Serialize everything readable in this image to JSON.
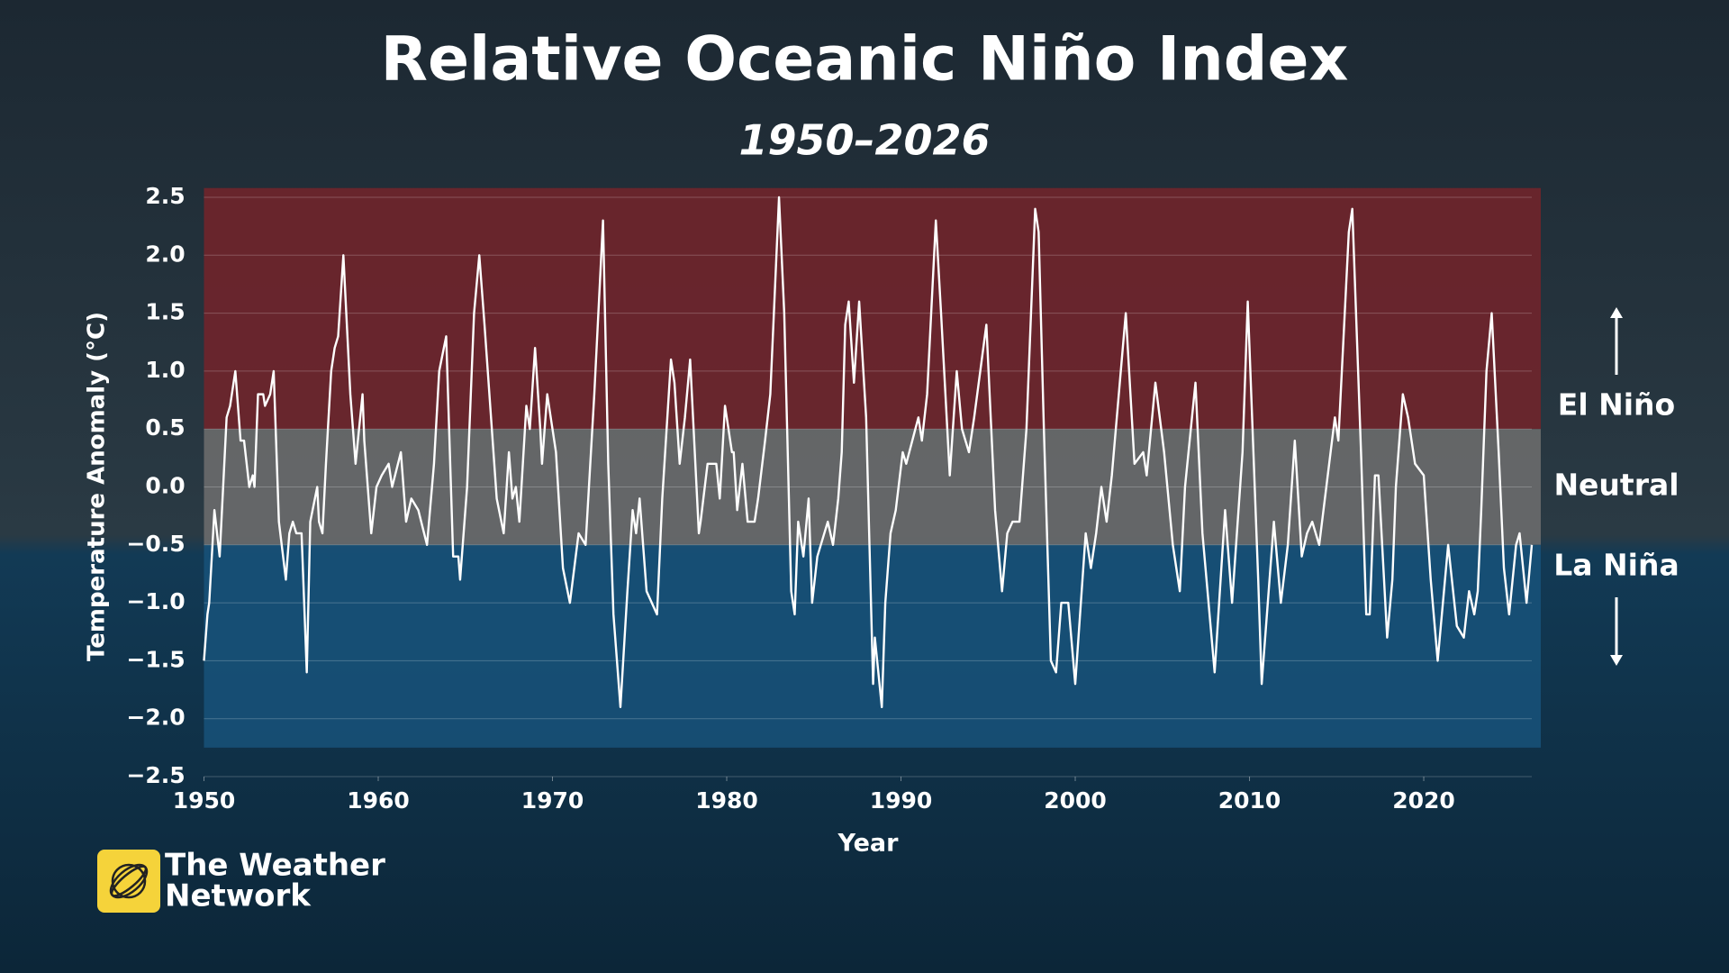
{
  "chart_data": {
    "type": "line",
    "title": "Relative Oceanic Niño Index",
    "subtitle": "1950–2026",
    "y_label": "Temperature Anomaly (°C)",
    "x_label": "Year",
    "brand": [
      "The Weather",
      "Network"
    ],
    "color": "#ffffff",
    "grid": true,
    "bands": [
      {
        "name": "El Niño",
        "from": 0.5,
        "to": 2.58,
        "color": "#74232a"
      },
      {
        "name": "Neutral",
        "from": -0.5,
        "to": 0.5,
        "color": "#6e6e6e"
      },
      {
        "name": "La Niña",
        "from": -2.25,
        "to": -0.5,
        "color": "#17527a"
      }
    ],
    "xlim": [
      1950,
      2026.2
    ],
    "xticks": [
      1950,
      1960,
      1970,
      1980,
      1990,
      2000,
      2010,
      2020
    ],
    "ylim": [
      -2.5,
      2.5
    ],
    "yticks": [
      {
        "value": -2.5,
        "label": "−2.5"
      },
      {
        "value": -2,
        "label": "−2.0"
      },
      {
        "value": -1.5,
        "label": "−1.5"
      },
      {
        "value": -1,
        "label": "−1.0"
      },
      {
        "value": -0.5,
        "label": "−0.5"
      },
      {
        "value": 0,
        "label": "0.0"
      },
      0.5,
      {
        "value": 1,
        "label": "1.0"
      },
      1.5,
      {
        "value": 2,
        "label": "2.0"
      },
      2.5
    ],
    "x": [
      1950.0,
      1950.2,
      1950.3,
      1950.6,
      1950.9,
      1951.3,
      1951.5,
      1951.8,
      1952.1,
      1952.3,
      1952.6,
      1952.8,
      1952.9,
      1953.1,
      1953.4,
      1953.5,
      1953.8,
      1954.0,
      1954.3,
      1954.7,
      1954.9,
      1955.1,
      1955.3,
      1955.6,
      1955.9,
      1956.1,
      1956.5,
      1956.6,
      1956.8,
      1957.0,
      1957.3,
      1957.5,
      1957.7,
      1958.0,
      1958.4,
      1958.7,
      1959.1,
      1959.2,
      1959.6,
      1959.9,
      1960.2,
      1960.6,
      1960.8,
      1961.3,
      1961.6,
      1961.9,
      1962.3,
      1962.8,
      1963.2,
      1963.5,
      1963.9,
      1964.3,
      1964.6,
      1964.7,
      1965.1,
      1965.5,
      1965.8,
      1966.1,
      1966.8,
      1967.2,
      1967.5,
      1967.7,
      1967.9,
      1968.1,
      1968.5,
      1968.7,
      1969.0,
      1969.3,
      1969.4,
      1969.7,
      1970.2,
      1970.6,
      1971.0,
      1971.5,
      1971.9,
      1972.4,
      1972.9,
      1973.2,
      1973.5,
      1973.9,
      1974.3,
      1974.6,
      1974.8,
      1975.0,
      1975.4,
      1976.0,
      1976.3,
      1976.8,
      1977.0,
      1977.3,
      1977.6,
      1977.9,
      1978.4,
      1978.5,
      1978.9,
      1979.4,
      1979.6,
      1979.9,
      1980.3,
      1980.4,
      1980.6,
      1980.9,
      1981.2,
      1981.6,
      1981.8,
      1982.2,
      1982.5,
      1983.0,
      1983.3,
      1983.7,
      1983.9,
      1984.1,
      1984.4,
      1984.7,
      1984.9,
      1985.2,
      1985.8,
      1986.1,
      1986.4,
      1986.6,
      1986.8,
      1987.0,
      1987.3,
      1987.6,
      1988.0,
      1988.4,
      1988.5,
      1988.9,
      1989.1,
      1989.4,
      1989.7,
      1990.1,
      1990.3,
      1991.0,
      1991.2,
      1991.5,
      1992.0,
      1992.3,
      1992.8,
      1993.2,
      1993.5,
      1993.9,
      1994.2,
      1994.9,
      1995.4,
      1995.8,
      1996.1,
      1996.4,
      1996.8,
      1997.2,
      1997.7,
      1997.9,
      1998.2,
      1998.6,
      1998.9,
      1999.2,
      1999.6,
      2000.0,
      2000.6,
      2000.9,
      2001.2,
      2001.5,
      2001.8,
      2002.1,
      2002.9,
      2003.4,
      2003.9,
      2004.1,
      2004.6,
      2005.1,
      2005.6,
      2006.0,
      2006.3,
      2006.9,
      2007.3,
      2008.0,
      2008.6,
      2009.0,
      2009.6,
      2009.9,
      2010.5,
      2010.7,
      2011.4,
      2011.8,
      2012.2,
      2012.6,
      2013.0,
      2013.3,
      2013.6,
      2014.0,
      2014.9,
      2015.1,
      2015.7,
      2015.9,
      2016.4,
      2016.7,
      2016.9,
      2017.2,
      2017.4,
      2017.9,
      2018.2,
      2018.4,
      2018.8,
      2019.1,
      2019.5,
      2020.0,
      2020.4,
      2020.8,
      2021.1,
      2021.4,
      2021.9,
      2022.3,
      2022.6,
      2022.9,
      2023.1,
      2023.3,
      2023.6,
      2023.9,
      2024.3,
      2024.6,
      2024.9,
      2025.3,
      2025.5,
      2025.9,
      2026.2
    ],
    "values": [
      -1.5,
      -1.1,
      -1.0,
      -0.2,
      -0.6,
      0.6,
      0.7,
      1.0,
      0.4,
      0.4,
      0.0,
      0.1,
      0.0,
      0.8,
      0.8,
      0.7,
      0.8,
      1.0,
      -0.3,
      -0.8,
      -0.4,
      -0.3,
      -0.4,
      -0.4,
      -1.6,
      -0.3,
      0.0,
      -0.3,
      -0.4,
      0.2,
      1.0,
      1.2,
      1.3,
      2.0,
      0.8,
      0.2,
      0.8,
      0.4,
      -0.4,
      0.0,
      0.1,
      0.2,
      0.0,
      0.3,
      -0.3,
      -0.1,
      -0.2,
      -0.5,
      0.2,
      1.0,
      1.3,
      -0.6,
      -0.6,
      -0.8,
      0.0,
      1.5,
      2.0,
      1.4,
      -0.1,
      -0.4,
      0.3,
      -0.1,
      0.0,
      -0.3,
      0.7,
      0.5,
      1.2,
      0.5,
      0.2,
      0.8,
      0.3,
      -0.7,
      -1.0,
      -0.4,
      -0.5,
      0.8,
      2.3,
      0.2,
      -1.1,
      -1.9,
      -0.9,
      -0.2,
      -0.4,
      -0.1,
      -0.9,
      -1.1,
      -0.1,
      1.1,
      0.9,
      0.2,
      0.6,
      1.1,
      -0.4,
      -0.3,
      0.2,
      0.2,
      -0.1,
      0.7,
      0.3,
      0.3,
      -0.2,
      0.2,
      -0.3,
      -0.3,
      -0.1,
      0.4,
      0.8,
      2.5,
      1.5,
      -0.9,
      -1.1,
      -0.3,
      -0.6,
      -0.1,
      -1.0,
      -0.6,
      -0.3,
      -0.5,
      -0.1,
      0.3,
      1.4,
      1.6,
      0.9,
      1.6,
      0.6,
      -1.7,
      -1.3,
      -1.9,
      -1.0,
      -0.4,
      -0.2,
      0.3,
      0.2,
      0.6,
      0.4,
      0.8,
      2.3,
      1.5,
      0.1,
      1.0,
      0.5,
      0.3,
      0.6,
      1.4,
      -0.2,
      -0.9,
      -0.4,
      -0.3,
      -0.3,
      0.5,
      2.4,
      2.2,
      0.5,
      -1.5,
      -1.6,
      -1.0,
      -1.0,
      -1.7,
      -0.4,
      -0.7,
      -0.4,
      0.0,
      -0.3,
      0.1,
      1.5,
      0.2,
      0.3,
      0.1,
      0.9,
      0.3,
      -0.5,
      -0.9,
      0.0,
      0.9,
      -0.4,
      -1.6,
      -0.2,
      -1.0,
      0.3,
      1.6,
      -0.8,
      -1.7,
      -0.3,
      -1.0,
      -0.5,
      0.4,
      -0.6,
      -0.4,
      -0.3,
      -0.5,
      0.6,
      0.4,
      2.2,
      2.4,
      0.3,
      -1.1,
      -1.1,
      0.1,
      0.1,
      -1.3,
      -0.8,
      0.0,
      0.8,
      0.6,
      0.2,
      0.1,
      -0.8,
      -1.5,
      -1.0,
      -0.5,
      -1.2,
      -1.3,
      -0.9,
      -1.1,
      -0.9,
      -0.2,
      1.0,
      1.5,
      0.3,
      -0.7,
      -1.1,
      -0.5,
      -0.4,
      -1.0,
      -0.5
    ]
  }
}
